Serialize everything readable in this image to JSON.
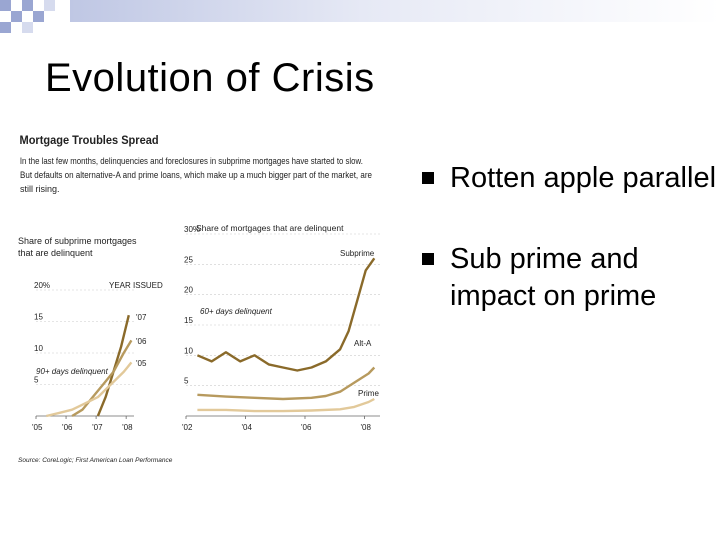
{
  "slide": {
    "title": "Evolution of Crisis",
    "bullets": [
      "Rotten apple parallel",
      "Sub prime and impact on prime"
    ]
  },
  "figure": {
    "heading": "Mortgage Troubles Spread",
    "intro": [
      "In the last few months, delinquencies and foreclosures in subprime mortgages have started to slow.",
      "But defaults on alternative-A and prime loans, which make up a much bigger part of the market, are",
      "still rising."
    ],
    "source": "Source: CoreLogic; First American Loan Performance"
  },
  "chart_data": [
    {
      "type": "line",
      "title": "Share of subprime mortgages that are delinquent",
      "legend_label": "YEAR ISSUED",
      "annotation": "90+ days delinquent",
      "ylim": [
        0,
        20
      ],
      "yticks": [
        "20%",
        "15",
        "10",
        "5"
      ],
      "xticks": [
        "'05",
        "'06",
        "'07",
        "'08"
      ],
      "series": [
        {
          "name": "'07",
          "x": [
            2007.0,
            2007.3,
            2007.6,
            2007.9,
            2008.2
          ],
          "y": [
            0,
            3,
            7,
            11,
            16
          ]
        },
        {
          "name": "'06",
          "x": [
            2006.0,
            2006.4,
            2006.8,
            2007.2,
            2007.6,
            2008.0,
            2008.3
          ],
          "y": [
            0,
            1,
            3,
            5,
            7,
            10,
            12
          ]
        },
        {
          "name": "'05",
          "x": [
            2005.0,
            2005.5,
            2006.0,
            2006.5,
            2007.0,
            2007.5,
            2008.0,
            2008.3
          ],
          "y": [
            0,
            0.5,
            1,
            2,
            3,
            5,
            7,
            8.5
          ]
        }
      ]
    },
    {
      "type": "line",
      "title": "Share of mortgages that are delinquent",
      "annotation": "60+ days delinquent",
      "ylim": [
        0,
        30
      ],
      "yticks": [
        "30%",
        "25",
        "20",
        "15",
        "10",
        "5"
      ],
      "xticks": [
        "'02",
        "'04",
        "'06",
        "'08"
      ],
      "series": [
        {
          "name": "Subprime",
          "x": [
            2002.0,
            2002.5,
            2003.0,
            2003.5,
            2004.0,
            2004.5,
            2005.0,
            2005.5,
            2006.0,
            2006.5,
            2007.0,
            2007.3,
            2007.6,
            2007.9,
            2008.2
          ],
          "y": [
            10,
            9,
            10.5,
            9,
            10,
            8.5,
            8,
            7.5,
            8,
            9,
            11,
            14,
            19,
            24,
            26
          ]
        },
        {
          "name": "Alt-A",
          "x": [
            2002.0,
            2003.0,
            2004.0,
            2005.0,
            2006.0,
            2006.5,
            2007.0,
            2007.5,
            2008.0,
            2008.2
          ],
          "y": [
            3.5,
            3.2,
            3,
            2.8,
            3,
            3.3,
            4,
            5.5,
            7,
            8
          ]
        },
        {
          "name": "Prime",
          "x": [
            2002.0,
            2003.0,
            2004.0,
            2005.0,
            2006.0,
            2007.0,
            2007.5,
            2008.0,
            2008.2
          ],
          "y": [
            1,
            1,
            0.8,
            0.8,
            0.9,
            1.1,
            1.5,
            2.3,
            2.8
          ]
        }
      ]
    }
  ]
}
